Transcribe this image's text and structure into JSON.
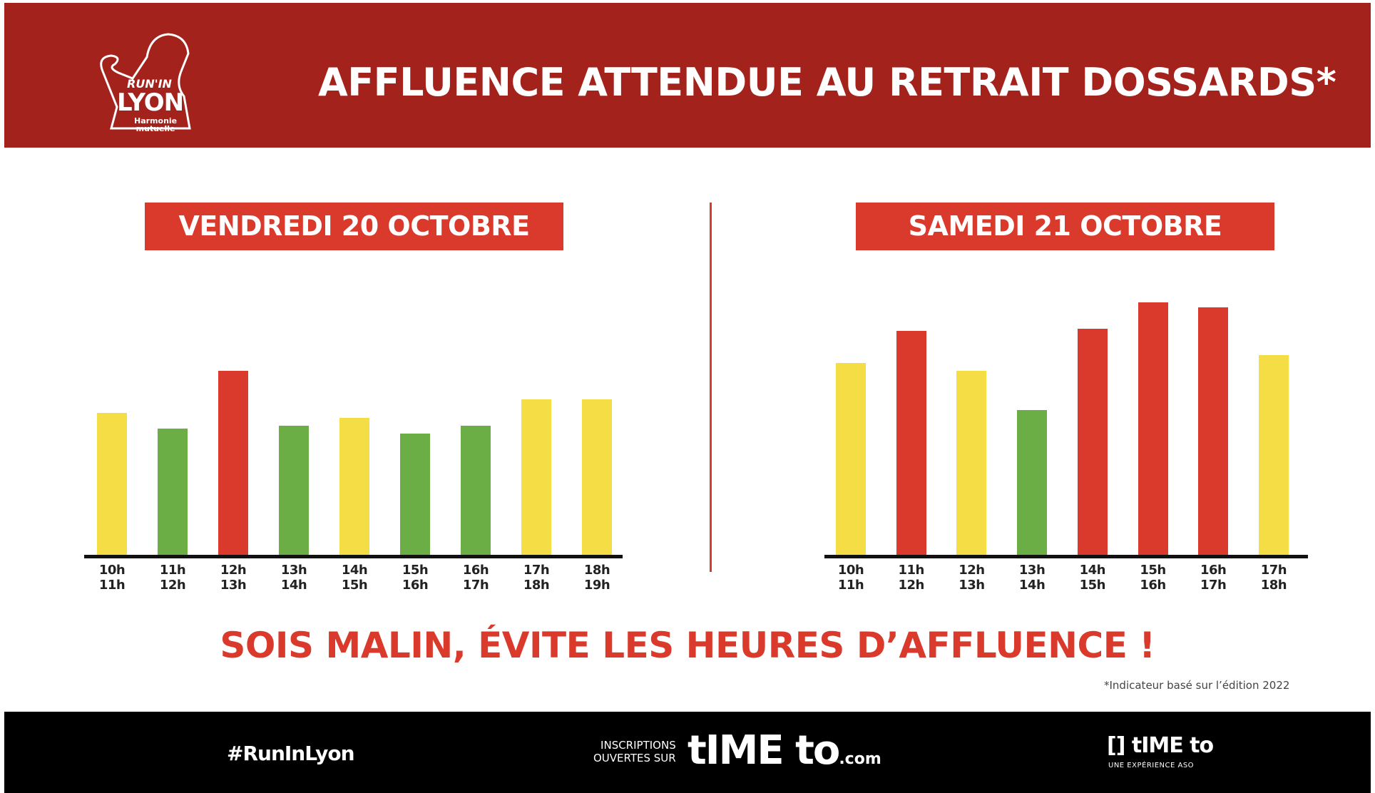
{
  "header": {
    "title": "AFFLUENCE ATTENDUE AU RETRAIT DOSSARDS*",
    "logo_text": {
      "top": "RUN'IN",
      "main": "LYON",
      "sponsor_1": "Harmonie",
      "sponsor_2": "mutuelle"
    }
  },
  "colors": {
    "header": "#a3221b",
    "accent": "#d93a2c",
    "low": "#6aae45",
    "medium": "#f5dd45",
    "high": "#d93a2c"
  },
  "chart_data": [
    {
      "type": "bar",
      "title": "VENDREDI 20 OCTOBRE",
      "ylim": [
        0,
        100
      ],
      "xlabel": "",
      "ylabel": "",
      "categories": [
        [
          "10h",
          "11h"
        ],
        [
          "11h",
          "12h"
        ],
        [
          "12h",
          "13h"
        ],
        [
          "13h",
          "14h"
        ],
        [
          "14h",
          "15h"
        ],
        [
          "15h",
          "16h"
        ],
        [
          "16h",
          "17h"
        ],
        [
          "17h",
          "18h"
        ],
        [
          "18h",
          "19h"
        ]
      ],
      "values": [
        54,
        48,
        70,
        49,
        52,
        46,
        49,
        59,
        59
      ],
      "levels": [
        "medium",
        "low",
        "high",
        "low",
        "medium",
        "low",
        "low",
        "medium",
        "medium"
      ]
    },
    {
      "type": "bar",
      "title": "SAMEDI 21 OCTOBRE",
      "ylim": [
        0,
        100
      ],
      "xlabel": "",
      "ylabel": "",
      "categories": [
        [
          "10h",
          "11h"
        ],
        [
          "11h",
          "12h"
        ],
        [
          "12h",
          "13h"
        ],
        [
          "13h",
          "14h"
        ],
        [
          "14h",
          "15h"
        ],
        [
          "15h",
          "16h"
        ],
        [
          "16h",
          "17h"
        ],
        [
          "17h",
          "18h"
        ]
      ],
      "values": [
        73,
        85,
        70,
        55,
        86,
        96,
        94,
        76
      ],
      "levels": [
        "medium",
        "high",
        "medium",
        "low",
        "high",
        "high",
        "high",
        "medium"
      ]
    }
  ],
  "slogan": "SOIS MALIN, ÉVITE LES HEURES D’AFFLUENCE !",
  "footnote": "*Indicateur basé sur l’édition 2022",
  "footer": {
    "hashtag": "#RunInLyon",
    "inscriptions_1": "INSCRIPTIONS",
    "inscriptions_2": "OUVERTES SUR",
    "site": "tIME to",
    "site_suffix": ".com",
    "brand": "[] tIME to",
    "brand_sub": "UNE EXPÉRIENCE ASO"
  }
}
